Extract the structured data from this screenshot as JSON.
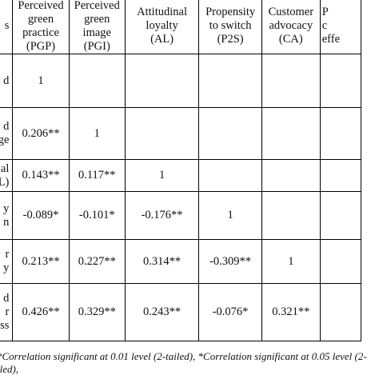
{
  "header": {
    "row_col": "s",
    "columns": [
      {
        "lines": [
          "Perceived",
          "green",
          "practice",
          "(PGP)"
        ]
      },
      {
        "lines": [
          "Perceived",
          "green",
          "image",
          "(PGI)"
        ]
      },
      {
        "lines": [
          "Attitudinal",
          "loyalty",
          "(AL)"
        ]
      },
      {
        "lines": [
          "Propensity",
          "to switch",
          "(P2S)"
        ]
      },
      {
        "lines": [
          "Customer",
          "advocacy",
          "(CA)"
        ]
      },
      {
        "lines": [
          "P",
          "c",
          "effe"
        ]
      }
    ]
  },
  "rows": [
    {
      "label": [
        "d",
        ""
      ],
      "cells": [
        "1",
        "",
        "",
        "",
        "",
        ""
      ]
    },
    {
      "label": [
        "d",
        "ge"
      ],
      "cells": [
        "0.206**",
        "1",
        "",
        "",
        "",
        ""
      ]
    },
    {
      "label": [
        "al",
        "L)"
      ],
      "cells": [
        "0.143**",
        "0.117**",
        "1",
        "",
        "",
        ""
      ]
    },
    {
      "label": [
        "y",
        "n"
      ],
      "cells": [
        "-0.089*",
        "-0.101*",
        "-0.176**",
        "1",
        "",
        ""
      ]
    },
    {
      "label": [
        "r",
        "y"
      ],
      "cells": [
        "0.213**",
        "0.227**",
        "0.314**",
        "-0.309**",
        "1",
        ""
      ]
    },
    {
      "label": [
        "d",
        "r",
        "ess"
      ],
      "cells": [
        "0.426**",
        "0.329**",
        "0.243**",
        "-0.076*",
        "0.321**",
        ""
      ]
    }
  ],
  "footnote": {
    "line1": "*Correlation significant at 0.01 level (2-tailed), *Correlation significant at 0.05 level (2-",
    "line2": "iled),"
  }
}
